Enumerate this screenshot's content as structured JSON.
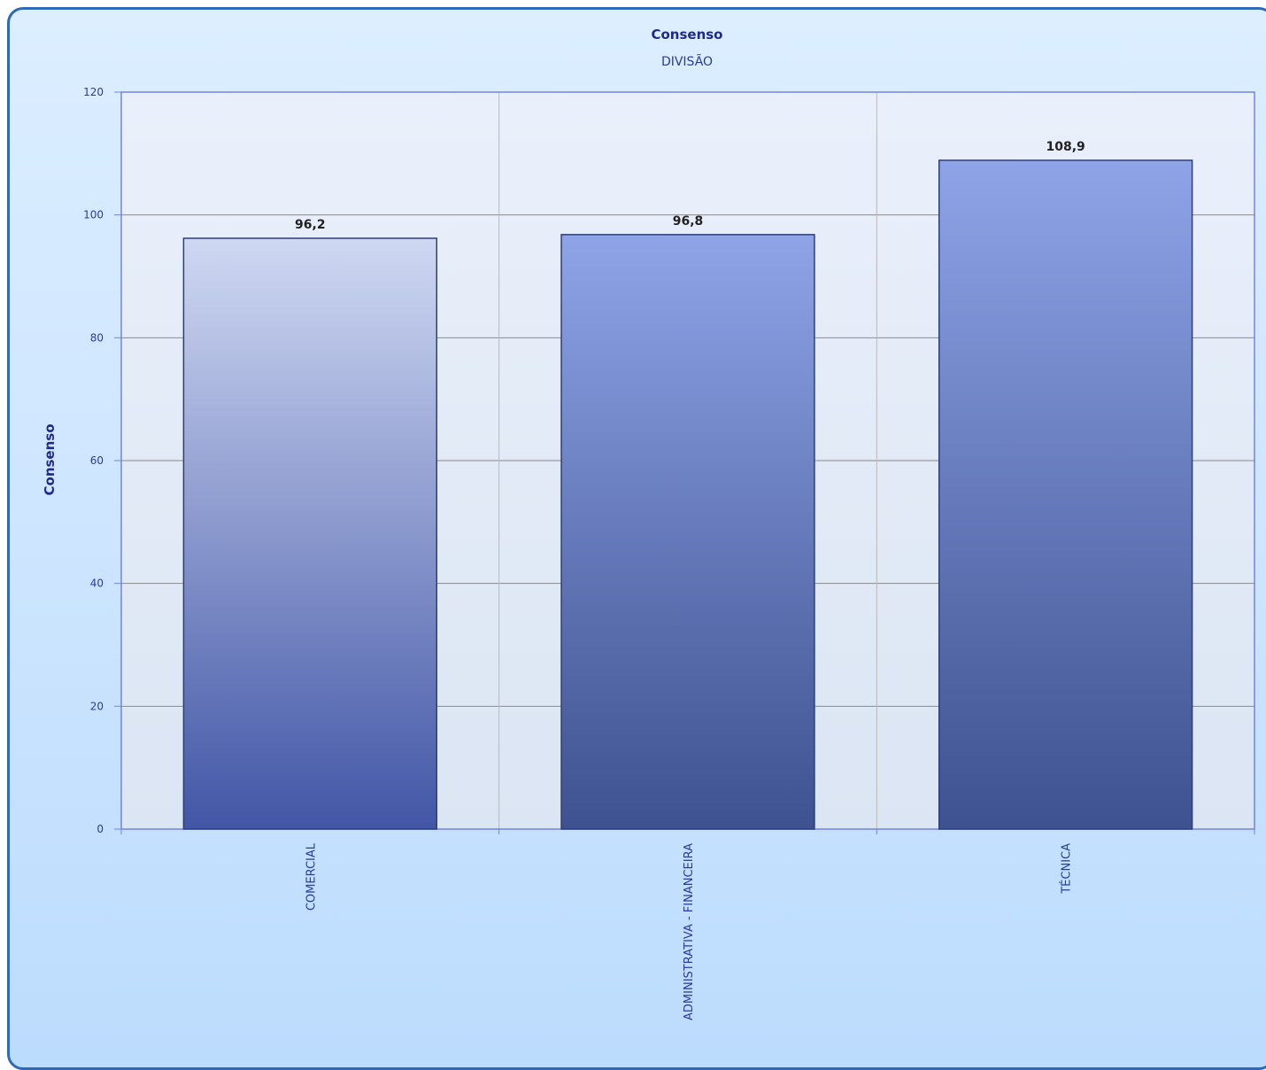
{
  "chart_data": {
    "type": "bar",
    "title": "Consenso",
    "subtitle": "DIVISÃO",
    "xlabel": "",
    "ylabel": "Consenso",
    "categories": [
      "COMERCIAL",
      "ADMINISTRATIVA - FINANCEIRA",
      "TÉCNICA"
    ],
    "values": [
      96.2,
      96.8,
      108.9
    ],
    "value_labels": [
      "96,2",
      "96,8",
      "108,9"
    ],
    "ylim": [
      0,
      120
    ],
    "yticks": [
      0,
      20,
      40,
      60,
      80,
      100,
      120
    ],
    "ytick_labels": [
      "0",
      "20",
      "40",
      "60",
      "80",
      "100",
      "120"
    ],
    "grid": true,
    "legend": "none",
    "colors": {
      "bar_top": "#8ea4e6",
      "bar_bottom": "#3e5190",
      "first_bar_top": "#cfd8f2",
      "first_bar_bottom": "#4256a6",
      "frame_border": "#2f6ab8",
      "plot_border": "#6f86e0",
      "grid": "#8a8a8a",
      "text": "#2a3a9a"
    }
  }
}
